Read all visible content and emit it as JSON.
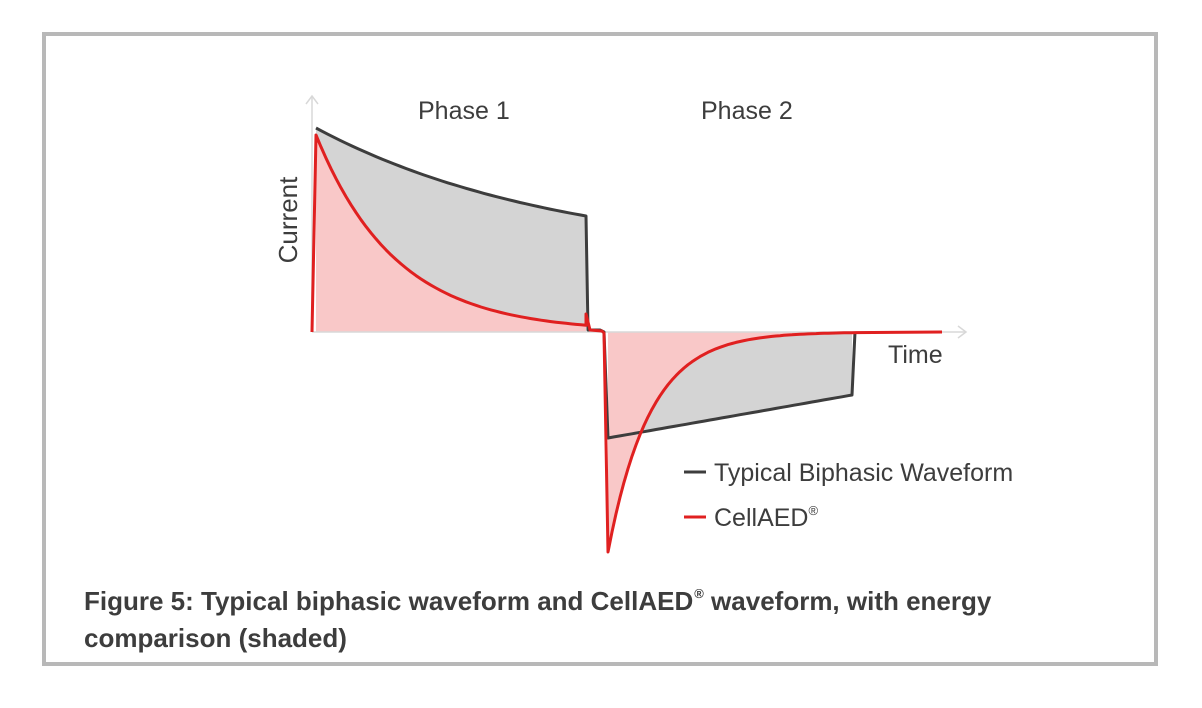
{
  "figure": {
    "caption_before": "Figure 5: Typical biphasic waveform and CellAED",
    "caption_mark": "®",
    "caption_after": " waveform, with energy comparison (shaded)"
  },
  "chart_data": {
    "type": "line",
    "xlabel": "Time",
    "ylabel": "Current",
    "annotations": [
      "Phase 1",
      "Phase 2"
    ],
    "legend_placement": "bottom-right",
    "series": [
      {
        "name": "Typical Biphasic Waveform",
        "color": "#3d3d3d",
        "shape": "truncated exponential, phase 1 positive then phase 2 negative"
      },
      {
        "name": "CellAED",
        "name_mark": "®",
        "color": "#e02020",
        "shape": "fast exponential decay, phase 1 positive then phase 2 negative"
      }
    ],
    "shading": {
      "typical_minus_cellaed": "#d4d4d4",
      "cellaed": "#f9c8c8"
    }
  }
}
